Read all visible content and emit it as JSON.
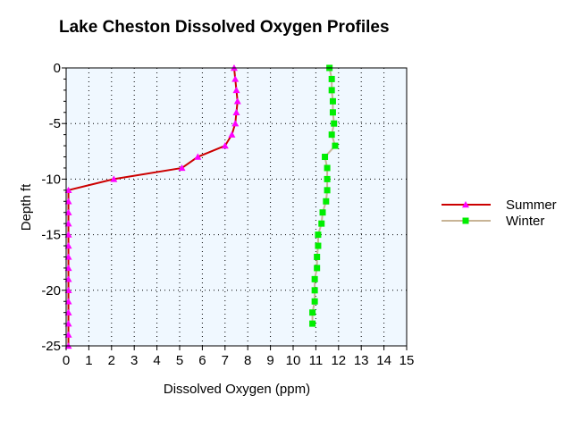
{
  "chart_data": {
    "type": "line",
    "title": "Lake Cheston Dissolved Oxygen Profiles",
    "xlabel": "Dissolved Oxygen (ppm)",
    "ylabel": "Depth ft",
    "xlim": [
      0,
      15
    ],
    "ylim": [
      -25,
      0
    ],
    "xticks": [
      "0",
      "1",
      "2",
      "3",
      "4",
      "5",
      "6",
      "7",
      "8",
      "9",
      "10",
      "11",
      "12",
      "13",
      "14",
      "15"
    ],
    "yticks": [
      "0",
      "-5",
      "-10",
      "-15",
      "-20",
      "-25"
    ],
    "grid": true,
    "legend_position": "right",
    "plot_background": "#f0f8ff",
    "series": [
      {
        "name": "Summer",
        "line_color": "#cc0000",
        "marker_color": "#ff00ff",
        "marker": "triangle",
        "points": [
          [
            7.4,
            0
          ],
          [
            7.45,
            -1
          ],
          [
            7.5,
            -2
          ],
          [
            7.55,
            -3
          ],
          [
            7.5,
            -4
          ],
          [
            7.45,
            -5
          ],
          [
            7.3,
            -6
          ],
          [
            7.0,
            -7
          ],
          [
            5.8,
            -8
          ],
          [
            5.1,
            -9
          ],
          [
            2.1,
            -10
          ],
          [
            0.1,
            -11
          ],
          [
            0.1,
            -12
          ],
          [
            0.1,
            -13
          ],
          [
            0.1,
            -14
          ],
          [
            0.1,
            -15
          ],
          [
            0.1,
            -16
          ],
          [
            0.1,
            -17
          ],
          [
            0.1,
            -18
          ],
          [
            0.1,
            -19
          ],
          [
            0.1,
            -20
          ],
          [
            0.1,
            -21
          ],
          [
            0.1,
            -22
          ],
          [
            0.1,
            -23
          ],
          [
            0.1,
            -24
          ],
          [
            0.1,
            -25
          ]
        ]
      },
      {
        "name": "Winter",
        "line_color": "#c8b496",
        "marker_color": "#00ee00",
        "marker": "square",
        "points": [
          [
            11.6,
            0
          ],
          [
            11.7,
            -1
          ],
          [
            11.7,
            -2
          ],
          [
            11.75,
            -3
          ],
          [
            11.75,
            -4
          ],
          [
            11.8,
            -5
          ],
          [
            11.7,
            -6
          ],
          [
            11.85,
            -7
          ],
          [
            11.4,
            -8
          ],
          [
            11.5,
            -9
          ],
          [
            11.5,
            -10
          ],
          [
            11.5,
            -11
          ],
          [
            11.45,
            -12
          ],
          [
            11.3,
            -13
          ],
          [
            11.25,
            -14
          ],
          [
            11.1,
            -15
          ],
          [
            11.1,
            -16
          ],
          [
            11.05,
            -17
          ],
          [
            11.05,
            -18
          ],
          [
            10.95,
            -19
          ],
          [
            10.95,
            -20
          ],
          [
            10.95,
            -21
          ],
          [
            10.85,
            -22
          ],
          [
            10.85,
            -23
          ]
        ]
      }
    ]
  }
}
